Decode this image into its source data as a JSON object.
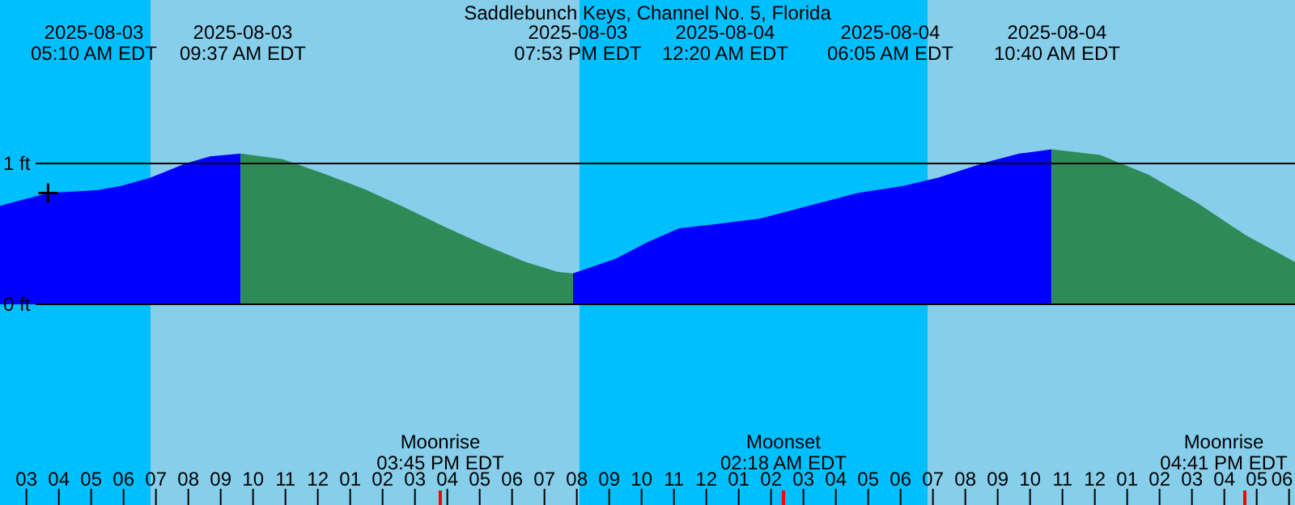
{
  "chart_data": {
    "type": "area",
    "title": "Saddlebunch Keys, Channel No. 5, Florida",
    "xlim": [
      "2025-08-03T02:11",
      "2025-08-04T18:11"
    ],
    "ylim": [
      -1.425,
      2.161
    ],
    "yticks": [
      {
        "value": 1,
        "label": "1 ft"
      },
      {
        "value": 0,
        "label": "0 ft"
      }
    ],
    "grid": "y",
    "xticks": [
      {
        "value": "2025-08-03T03:00",
        "label": "03"
      },
      {
        "value": "2025-08-03T04:00",
        "label": "04"
      },
      {
        "value": "2025-08-03T05:00",
        "label": "05"
      },
      {
        "value": "2025-08-03T06:00",
        "label": "06"
      },
      {
        "value": "2025-08-03T07:00",
        "label": "07"
      },
      {
        "value": "2025-08-03T08:00",
        "label": "08"
      },
      {
        "value": "2025-08-03T09:00",
        "label": "09"
      },
      {
        "value": "2025-08-03T10:00",
        "label": "10"
      },
      {
        "value": "2025-08-03T11:00",
        "label": "11"
      },
      {
        "value": "2025-08-03T12:00",
        "label": "12"
      },
      {
        "value": "2025-08-03T13:00",
        "label": "01"
      },
      {
        "value": "2025-08-03T14:00",
        "label": "02"
      },
      {
        "value": "2025-08-03T15:00",
        "label": "03"
      },
      {
        "value": "2025-08-03T16:00",
        "label": "04"
      },
      {
        "value": "2025-08-03T17:00",
        "label": "05"
      },
      {
        "value": "2025-08-03T18:00",
        "label": "06"
      },
      {
        "value": "2025-08-03T19:00",
        "label": "07"
      },
      {
        "value": "2025-08-03T20:00",
        "label": "08"
      },
      {
        "value": "2025-08-03T21:00",
        "label": "09"
      },
      {
        "value": "2025-08-03T22:00",
        "label": "10"
      },
      {
        "value": "2025-08-03T23:00",
        "label": "11"
      },
      {
        "value": "2025-08-04T00:00",
        "label": "12"
      },
      {
        "value": "2025-08-04T01:00",
        "label": "01"
      },
      {
        "value": "2025-08-04T02:00",
        "label": "02"
      },
      {
        "value": "2025-08-04T03:00",
        "label": "03"
      },
      {
        "value": "2025-08-04T04:00",
        "label": "04"
      },
      {
        "value": "2025-08-04T05:00",
        "label": "05"
      },
      {
        "value": "2025-08-04T06:00",
        "label": "06"
      },
      {
        "value": "2025-08-04T07:00",
        "label": "07"
      },
      {
        "value": "2025-08-04T08:00",
        "label": "08"
      },
      {
        "value": "2025-08-04T09:00",
        "label": "09"
      },
      {
        "value": "2025-08-04T10:00",
        "label": "10"
      },
      {
        "value": "2025-08-04T11:00",
        "label": "11"
      },
      {
        "value": "2025-08-04T12:00",
        "label": "12"
      },
      {
        "value": "2025-08-04T13:00",
        "label": "01"
      },
      {
        "value": "2025-08-04T14:00",
        "label": "02"
      },
      {
        "value": "2025-08-04T15:00",
        "label": "03"
      },
      {
        "value": "2025-08-04T16:00",
        "label": "04"
      },
      {
        "value": "2025-08-04T17:00",
        "label": "05"
      },
      {
        "value": "2025-08-04T18:00",
        "label": "06"
      }
    ],
    "bands": [
      {
        "axis": "x",
        "from": "2025-08-03T02:11",
        "to": "2025-08-03T06:50",
        "color": "#00bfff"
      },
      {
        "axis": "x",
        "from": "2025-08-03T20:05",
        "to": "2025-08-04T06:50",
        "color": "#00bfff"
      }
    ],
    "series": [
      {
        "color": "#0000ff",
        "x": [
          "2025-08-03T02:11",
          "2025-08-03T03:40",
          "2025-08-03T05:10",
          "2025-08-03T05:55",
          "2025-08-03T06:50",
          "2025-08-03T07:55",
          "2025-08-03T08:40",
          "2025-08-03T09:37"
        ],
        "values": [
          0.7,
          0.79,
          0.81,
          0.84,
          0.9,
          1.0,
          1.05,
          1.07
        ]
      },
      {
        "color": "#2e8b57",
        "x": [
          "2025-08-03T09:37",
          "2025-08-03T10:55",
          "2025-08-03T12:10",
          "2025-08-03T13:25",
          "2025-08-03T14:40",
          "2025-08-03T15:55",
          "2025-08-03T17:10",
          "2025-08-03T18:25",
          "2025-08-03T19:25",
          "2025-08-03T19:53"
        ],
        "values": [
          1.07,
          1.03,
          0.93,
          0.82,
          0.69,
          0.55,
          0.42,
          0.3,
          0.23,
          0.22
        ]
      },
      {
        "color": "#0000ff",
        "x": [
          "2025-08-03T19:53",
          "2025-08-03T21:10",
          "2025-08-03T22:10",
          "2025-08-03T23:10",
          "2025-08-04T00:20",
          "2025-08-04T01:40",
          "2025-08-04T03:10",
          "2025-08-04T04:40",
          "2025-08-04T06:05",
          "2025-08-04T07:10",
          "2025-08-04T08:40",
          "2025-08-04T09:40",
          "2025-08-04T10:40"
        ],
        "values": [
          0.22,
          0.32,
          0.44,
          0.54,
          0.57,
          0.61,
          0.7,
          0.79,
          0.84,
          0.9,
          1.01,
          1.07,
          1.1
        ]
      },
      {
        "color": "#2e8b57",
        "x": [
          "2025-08-04T10:40",
          "2025-08-04T12:10",
          "2025-08-04T13:40",
          "2025-08-04T15:10",
          "2025-08-04T16:40",
          "2025-08-04T18:11"
        ],
        "values": [
          1.1,
          1.06,
          0.92,
          0.72,
          0.49,
          0.3
        ]
      },
      {
        "type": "scatter",
        "marker": "cross",
        "color": "#000000",
        "x": [
          "2025-08-03T03:40"
        ],
        "values": [
          0.79
        ]
      }
    ],
    "annotations": [
      "2025-08-03\n05:10 AM EDT",
      "2025-08-03\n09:37 AM EDT",
      "2025-08-03\n07:53 PM EDT",
      "2025-08-04\n12:20 AM EDT",
      "2025-08-04\n06:05 AM EDT",
      "2025-08-04\n10:40 AM EDT",
      "Moonrise\n03:45 PM EDT",
      "Moonset\n02:18 AM EDT",
      "Moonrise\n04:41 PM EDT"
    ]
  }
}
